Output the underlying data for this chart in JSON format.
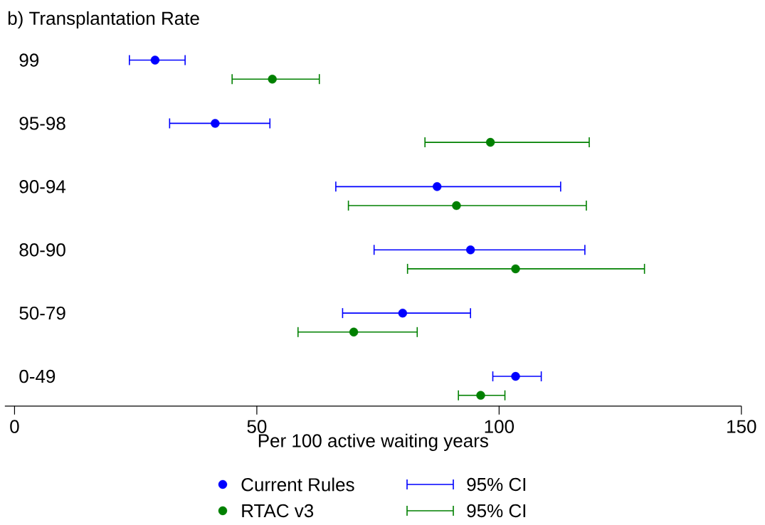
{
  "chart_data": {
    "type": "scatter",
    "orientation": "horizontal",
    "title": "b) Transplantation Rate",
    "xlabel": "Per 100 active waiting years",
    "categories": [
      "99",
      "95-98",
      "90-94",
      "80-90",
      "50-79",
      "0-49"
    ],
    "series": [
      {
        "name": "Current Rules",
        "color": "#0000ff",
        "values": [
          29.0,
          41.4,
          87.2,
          94.1,
          80.1,
          103.4
        ],
        "errors": [
          [
            23.7,
            35.2
          ],
          [
            32.0,
            52.7
          ],
          [
            66.3,
            112.7
          ],
          [
            74.2,
            117.7
          ],
          [
            67.7,
            94.1
          ],
          [
            98.7,
            108.7
          ]
        ]
      },
      {
        "name": "RTAC v3",
        "color": "#008000",
        "values": [
          53.2,
          98.2,
          91.2,
          103.4,
          70.0,
          96.2
        ],
        "errors": [
          [
            44.9,
            62.9
          ],
          [
            84.7,
            118.6
          ],
          [
            68.9,
            118.0
          ],
          [
            81.1,
            130.0
          ],
          [
            58.5,
            83.1
          ],
          [
            91.6,
            101.2
          ]
        ]
      }
    ],
    "annotations": [
      "95% CI",
      "95% CI"
    ],
    "xlim": [
      -2,
      150
    ],
    "xticks": [
      0,
      50,
      100,
      150
    ],
    "marker": "circle",
    "legend": "bottom"
  }
}
